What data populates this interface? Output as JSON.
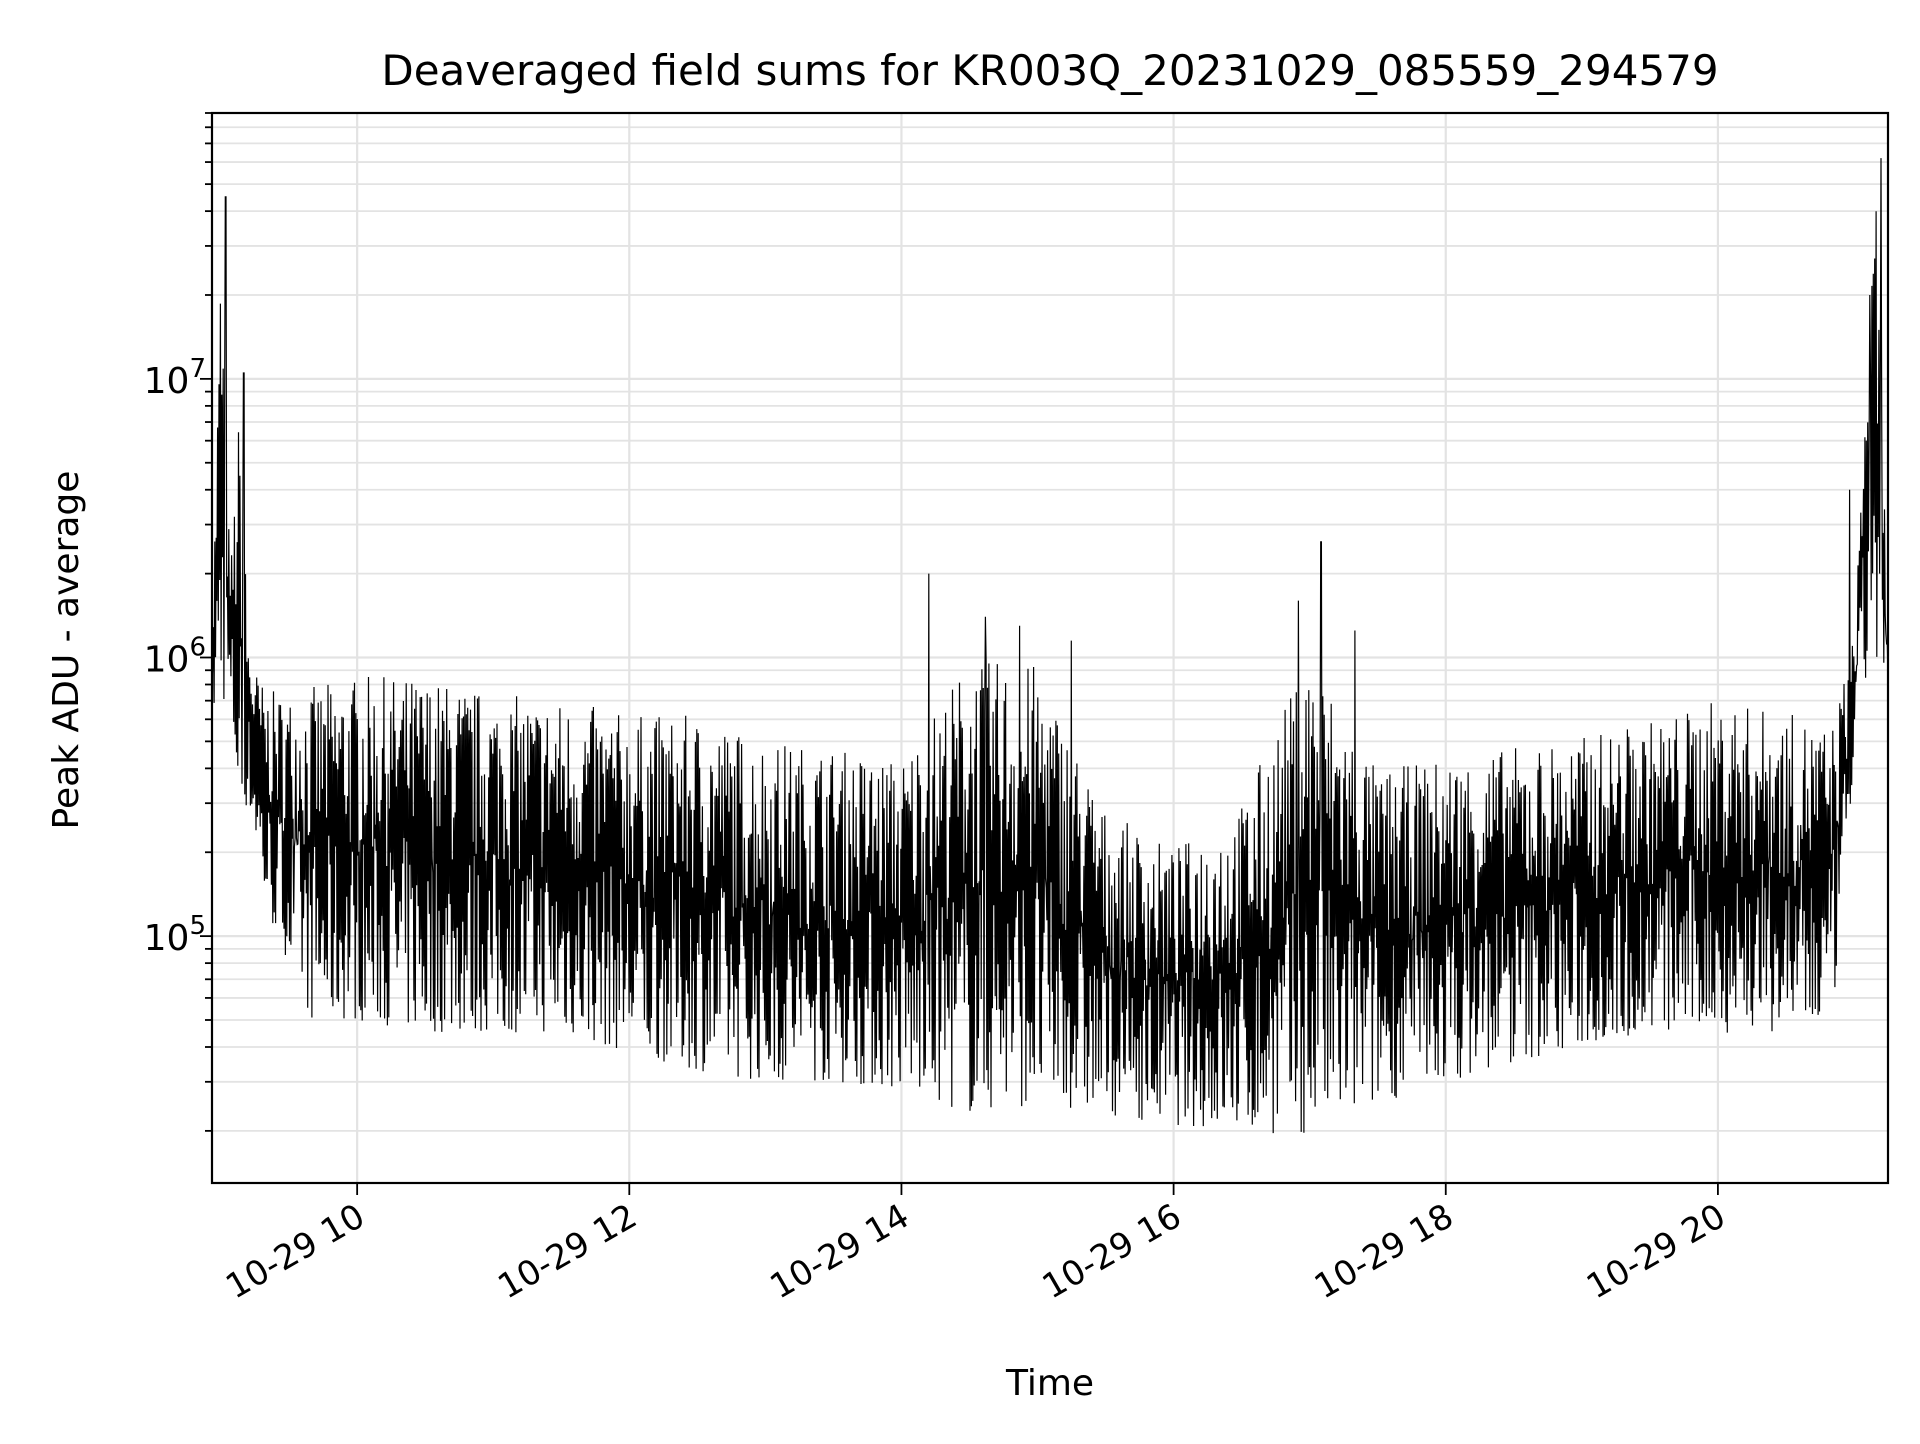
{
  "chart_data": {
    "type": "line",
    "title": "Deaveraged field sums for KR003Q_20231029_085559_294579",
    "xlabel": "Time",
    "ylabel": "Peak ADU - average",
    "x_is_datetime": true,
    "xlim": [
      "2023-10-29T08:56:00",
      "2023-10-29T21:15:00"
    ],
    "ylim": [
      13000,
      90000000
    ],
    "yscale": "log",
    "grid": true,
    "grid_minor": true,
    "line_color": "#000000",
    "x_ticks": [
      {
        "value": "2023-10-29T10:00:00",
        "label": "10-29 10"
      },
      {
        "value": "2023-10-29T12:00:00",
        "label": "10-29 12"
      },
      {
        "value": "2023-10-29T14:00:00",
        "label": "10-29 14"
      },
      {
        "value": "2023-10-29T16:00:00",
        "label": "10-29 16"
      },
      {
        "value": "2023-10-29T18:00:00",
        "label": "10-29 18"
      },
      {
        "value": "2023-10-29T20:00:00",
        "label": "10-29 20"
      }
    ],
    "y_ticks": [
      {
        "value": 100000,
        "base": "10",
        "exp": "5"
      },
      {
        "value": 1000000,
        "base": "10",
        "exp": "6"
      },
      {
        "value": 10000000,
        "base": "10",
        "exp": "7"
      }
    ],
    "series": [
      {
        "x": [
          "2023-10-29T08:56:00",
          "2023-10-29T09:00:00",
          "2023-10-29T09:04:00",
          "2023-10-29T09:08:00",
          "2023-10-29T09:12:00",
          "2023-10-29T09:16:00",
          "2023-10-29T09:20:00",
          "2023-10-29T09:30:00",
          "2023-10-29T09:40:00",
          "2023-10-29T10:00:00",
          "2023-10-29T10:30:00",
          "2023-10-29T11:00:00",
          "2023-10-29T11:30:00",
          "2023-10-29T12:00:00",
          "2023-10-29T12:30:00",
          "2023-10-29T13:00:00",
          "2023-10-29T13:30:00",
          "2023-10-29T14:00:00",
          "2023-10-29T14:30:00",
          "2023-10-29T15:00:00",
          "2023-10-29T15:30:00",
          "2023-10-29T16:00:00",
          "2023-10-29T16:30:00",
          "2023-10-29T17:00:00",
          "2023-10-29T17:30:00",
          "2023-10-29T18:00:00",
          "2023-10-29T18:30:00",
          "2023-10-29T19:00:00",
          "2023-10-29T19:30:00",
          "2023-10-29T20:00:00",
          "2023-10-29T20:30:00",
          "2023-10-29T20:50:00",
          "2023-10-29T21:00:00",
          "2023-10-29T21:06:00",
          "2023-10-29T21:10:00",
          "2023-10-29T21:15:00"
        ],
        "upper": [
          1200000,
          45000000,
          2200000,
          10500000,
          1400000,
          1000000,
          900000,
          900000,
          1000000,
          1100000,
          1100000,
          950000,
          900000,
          800000,
          800000,
          650000,
          600000,
          550000,
          1400000,
          1300000,
          350000,
          250000,
          380000,
          1500000,
          500000,
          550000,
          600000,
          650000,
          750000,
          900000,
          800000,
          700000,
          1300000,
          20000000,
          60000000,
          1300000
        ],
        "lower": [
          600000,
          700000,
          650000,
          250000,
          300000,
          200000,
          120000,
          80000,
          50000,
          50000,
          45000,
          45000,
          45000,
          38000,
          33000,
          30000,
          30000,
          28000,
          23000,
          25000,
          23000,
          21000,
          20000,
          19000,
          25000,
          30000,
          35000,
          40000,
          45000,
          45000,
          45000,
          45000,
          400000,
          900000,
          900000,
          650000
        ]
      }
    ],
    "spikes": [
      {
        "x": "2023-10-29T09:02:00",
        "y": 45000000
      },
      {
        "x": "2023-10-29T09:10:00",
        "y": 10500000
      },
      {
        "x": "2023-10-29T14:12:00",
        "y": 2000000
      },
      {
        "x": "2023-10-29T14:37:00",
        "y": 1400000
      },
      {
        "x": "2023-10-29T14:52:00",
        "y": 1300000
      },
      {
        "x": "2023-10-29T15:15:00",
        "y": 1150000
      },
      {
        "x": "2023-10-29T16:55:00",
        "y": 1600000
      },
      {
        "x": "2023-10-29T17:05:00",
        "y": 2600000
      },
      {
        "x": "2023-10-29T17:20:00",
        "y": 1250000
      },
      {
        "x": "2023-10-29T20:58:00",
        "y": 4000000
      },
      {
        "x": "2023-10-29T21:07:00",
        "y": 20000000
      },
      {
        "x": "2023-10-29T21:12:00",
        "y": 62000000
      }
    ]
  }
}
